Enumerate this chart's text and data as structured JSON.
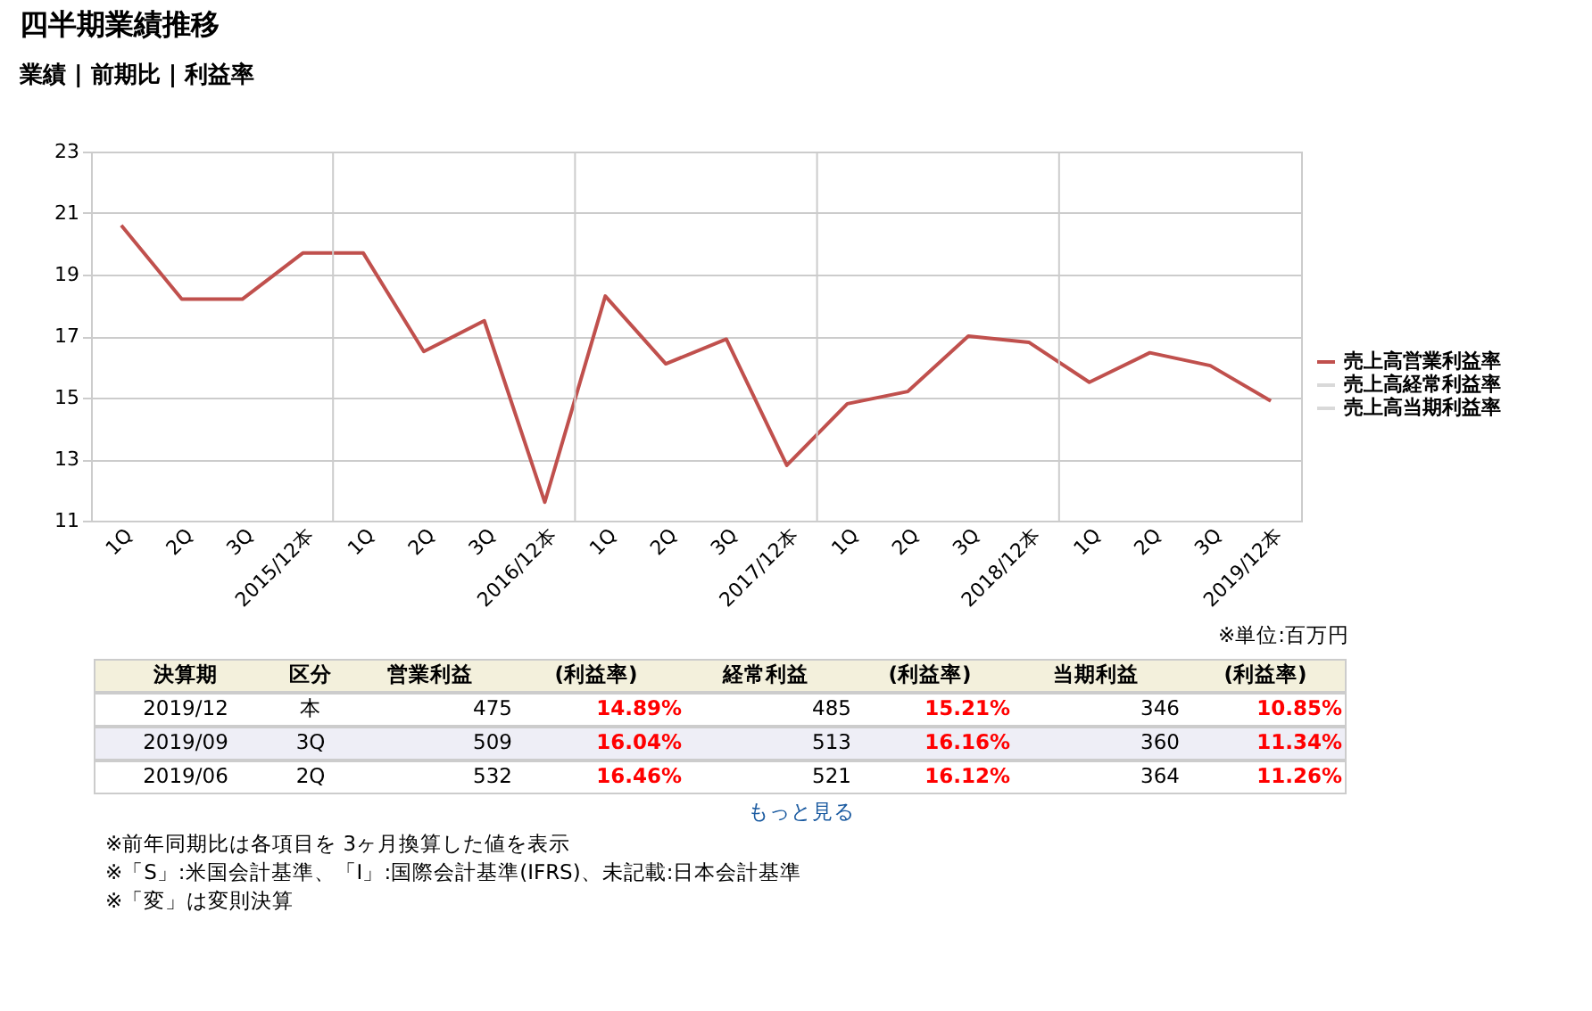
{
  "chart_data": {
    "type": "line",
    "title": "四半期業績推移",
    "subtitle": "業績 | 前期比 | 利益率",
    "categories": [
      "1Q",
      "2Q",
      "3Q",
      "2015/12本",
      "1Q",
      "2Q",
      "3Q",
      "2016/12本",
      "1Q",
      "2Q",
      "3Q",
      "2017/12本",
      "1Q",
      "2Q",
      "3Q",
      "2018/12本",
      "1Q",
      "2Q",
      "3Q",
      "2019/12本"
    ],
    "series": [
      {
        "name": "売上高営業利益率",
        "color": "#c0504d",
        "values": [
          20.6,
          18.2,
          18.2,
          19.7,
          19.7,
          16.5,
          17.5,
          11.6,
          18.3,
          16.1,
          16.9,
          12.8,
          14.8,
          15.2,
          17.0,
          16.8,
          15.5,
          16.46,
          16.04,
          14.89
        ]
      },
      {
        "name": "売上高経常利益率",
        "color": "#d9d9d9",
        "values": [
          null,
          null,
          null,
          null,
          null,
          null,
          null,
          null,
          null,
          null,
          null,
          null,
          null,
          null,
          null,
          null,
          null,
          null,
          null,
          null
        ]
      },
      {
        "name": "売上高当期利益率",
        "color": "#d9d9d9",
        "values": [
          null,
          null,
          null,
          null,
          null,
          null,
          null,
          null,
          null,
          null,
          null,
          null,
          null,
          null,
          null,
          null,
          null,
          null,
          null,
          null
        ]
      }
    ],
    "ylim": [
      11,
      23
    ],
    "yticks": [
      11,
      13,
      15,
      17,
      19,
      21,
      23
    ],
    "grid": true,
    "legend": "right",
    "marker": "none",
    "line_style": "solid",
    "annotations": [
      "※単位:百万円",
      "決算期",
      "区分",
      "営業利益",
      "(利益率)",
      "経常利益",
      "(利益率)",
      "当期利益",
      "(利益率)",
      "2019/12",
      "本",
      "475",
      "14.89%",
      "485",
      "15.21%",
      "346",
      "10.85%",
      "2019/09",
      "3Q",
      "509",
      "16.04%",
      "513",
      "16.16%",
      "360",
      "11.34%",
      "2019/06",
      "2Q",
      "532",
      "16.46%",
      "521",
      "16.12%",
      "364",
      "11.26%",
      "もっと見る",
      "※前年同期比は各項目を 3ヶ月換算した値を表示",
      "※「S」:米国会計基準、「I」:国際会計基準(IFRS)、未記載:日本会計基準",
      "※「変」は変則決算"
    ]
  }
}
